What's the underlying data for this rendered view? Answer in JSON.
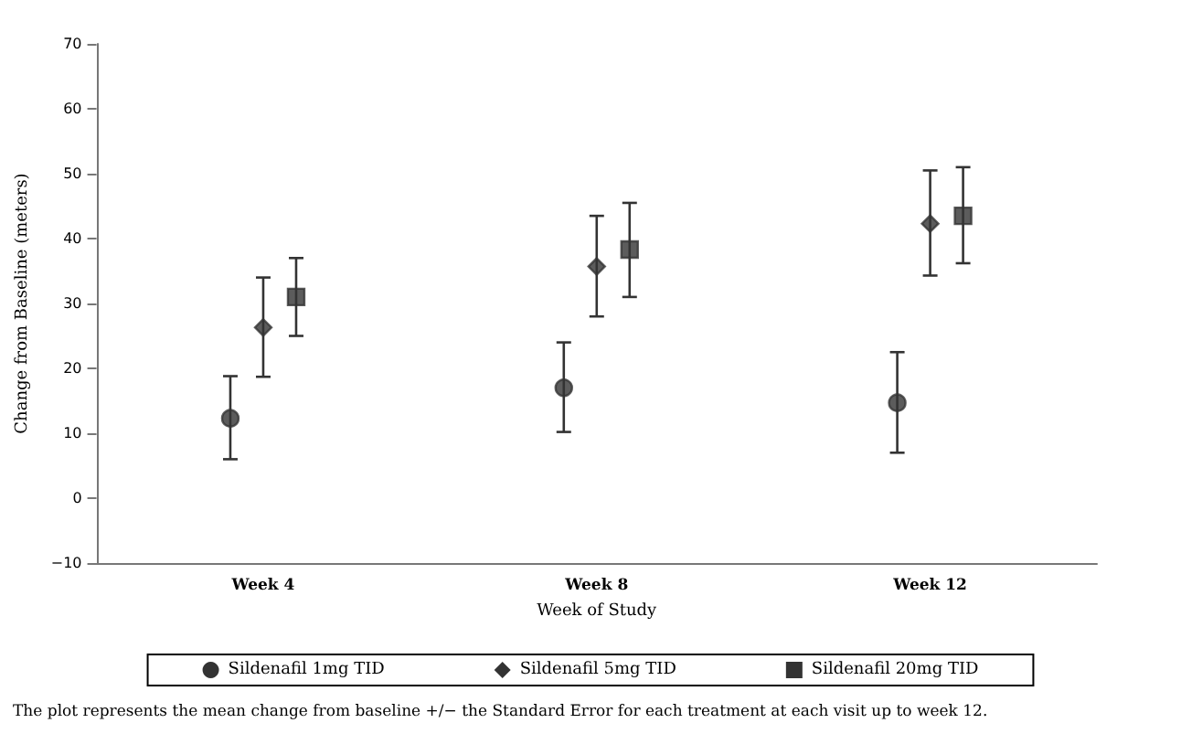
{
  "chart_data": {
    "type": "scatter",
    "xlabel": "Week of Study",
    "ylabel": "Change from Baseline (meters)",
    "categories": [
      "Week 4",
      "Week 8",
      "Week 12"
    ],
    "series": [
      {
        "name": "Sildenafil 1mg TID",
        "color": "#333333",
        "marker": "circle",
        "values": [
          12.3,
          17,
          14.7
        ],
        "errors": [
          [
            6,
            18.8
          ],
          [
            10.2,
            24
          ],
          [
            7,
            22.5
          ]
        ]
      },
      {
        "name": "Sildenafil 5mg TID",
        "color": "#333333",
        "marker": "diamond",
        "values": [
          26.3,
          35.7,
          42.3
        ],
        "errors": [
          [
            18.7,
            34
          ],
          [
            28,
            43.5
          ],
          [
            34.3,
            50.5
          ]
        ]
      },
      {
        "name": "Sildenafil 20mg TID",
        "color": "#333333",
        "marker": "square",
        "values": [
          31,
          38.3,
          43.5
        ],
        "errors": [
          [
            25,
            37
          ],
          [
            31,
            45.5
          ],
          [
            36.2,
            51
          ]
        ]
      }
    ],
    "ylim": [
      -10,
      70
    ],
    "yticks": [
      -10,
      0,
      10,
      20,
      30,
      40,
      50,
      60,
      70
    ],
    "grid": false,
    "legend": "bottom",
    "annotations": [
      "The plot represents the mean change from baseline +/− the Standard Error for each treatment at each visit up to week 12."
    ]
  }
}
